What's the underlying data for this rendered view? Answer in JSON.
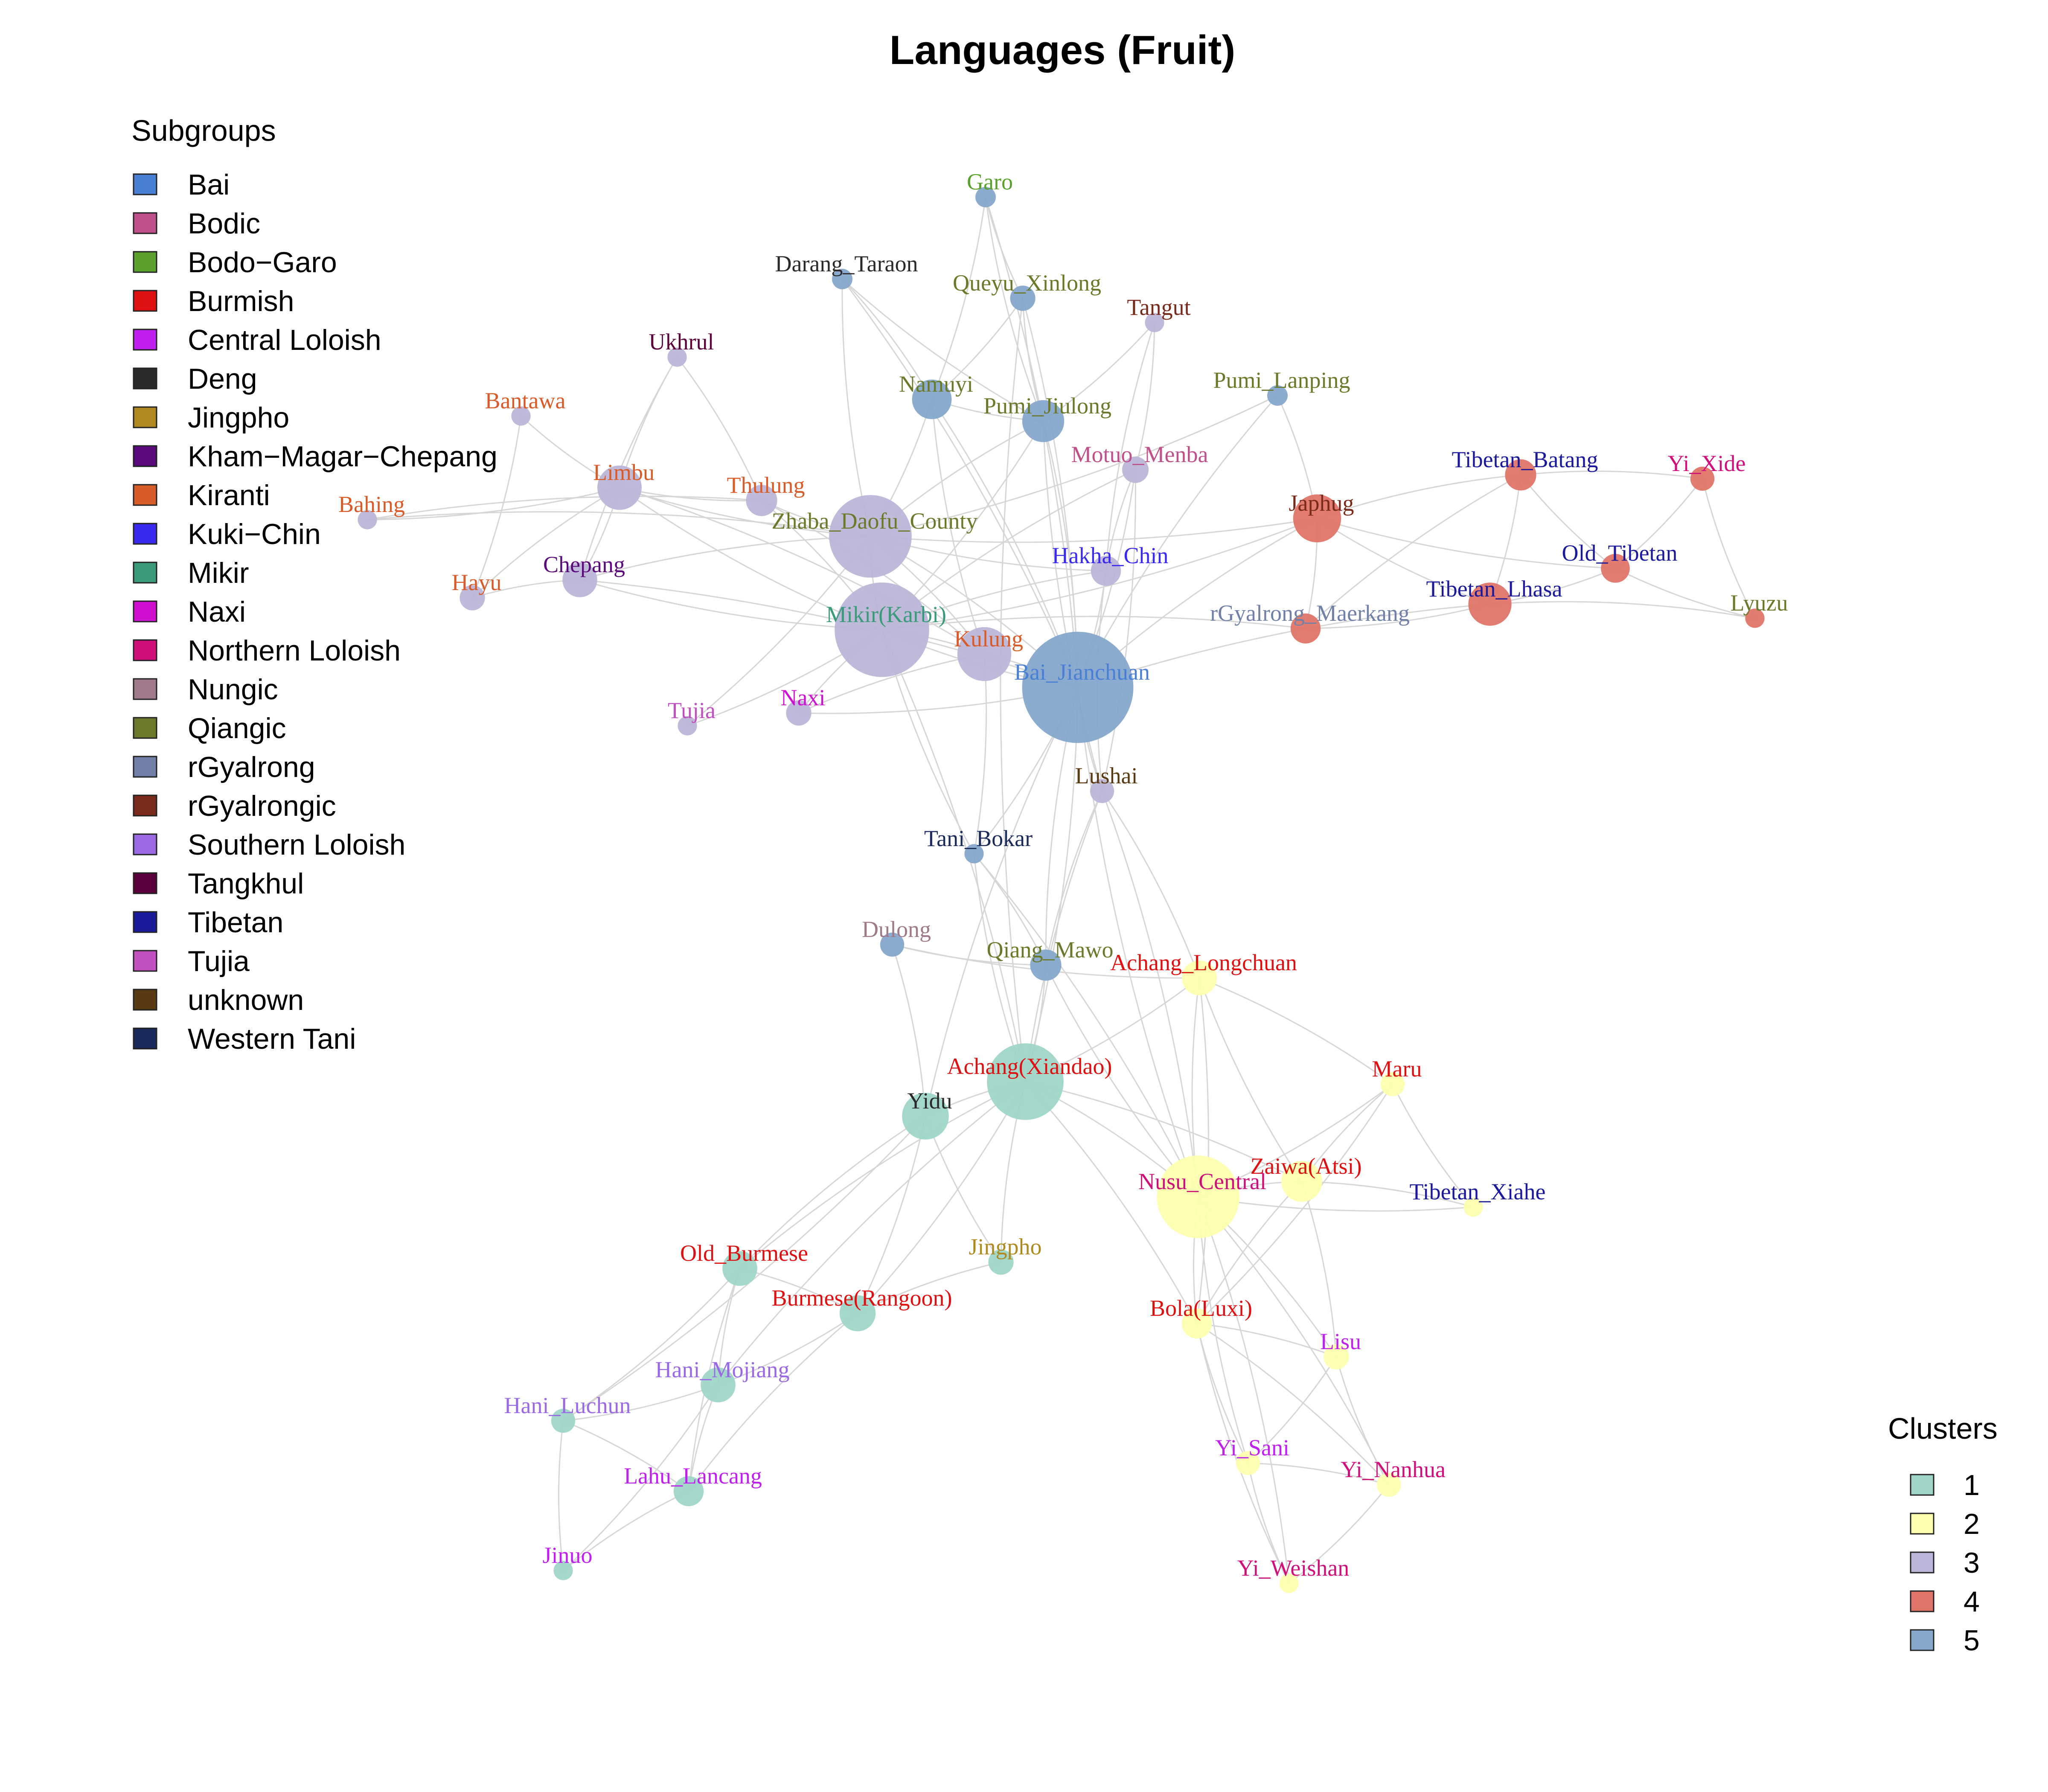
{
  "title": "Languages (Fruit)",
  "legends": {
    "subgroups": {
      "title": "Subgroups",
      "items": [
        {
          "label": "Bai",
          "color": "#4a7fd6"
        },
        {
          "label": "Bodic",
          "color": "#c0508a"
        },
        {
          "label": "Bodo−Garo",
          "color": "#5aa02c"
        },
        {
          "label": "Burmish",
          "color": "#dd1111"
        },
        {
          "label": "Central Loloish",
          "color": "#c020ee"
        },
        {
          "label": "Deng",
          "color": "#2a2a2a"
        },
        {
          "label": "Jingpho",
          "color": "#b08a20"
        },
        {
          "label": "Kham−Magar−Chepang",
          "color": "#5a0a7a"
        },
        {
          "label": "Kiranti",
          "color": "#d85c2a"
        },
        {
          "label": "Kuki−Chin",
          "color": "#3a2aee"
        },
        {
          "label": "Mikir",
          "color": "#3a9a7a"
        },
        {
          "label": "Naxi",
          "color": "#d010d0"
        },
        {
          "label": "Northern Loloish",
          "color": "#d0107a"
        },
        {
          "label": "Nungic",
          "color": "#a07a8a"
        },
        {
          "label": "Qiangic",
          "color": "#6a7a2a"
        },
        {
          "label": "rGyalrong",
          "color": "#7080a8"
        },
        {
          "label": "rGyalrongic",
          "color": "#7a2a1a"
        },
        {
          "label": "Southern Loloish",
          "color": "#9a6ae6"
        },
        {
          "label": "Tangkhul",
          "color": "#5a003a"
        },
        {
          "label": "Tibetan",
          "color": "#1a1a9a"
        },
        {
          "label": "Tujia",
          "color": "#c050c0"
        },
        {
          "label": "unknown",
          "color": "#5a3a10"
        },
        {
          "label": "Western Tani",
          "color": "#1a2a5a"
        }
      ]
    },
    "clusters": {
      "title": "Clusters",
      "items": [
        {
          "label": "1",
          "color": "#9fd6c8"
        },
        {
          "label": "2",
          "color": "#ffffb0"
        },
        {
          "label": "3",
          "color": "#bcb6d8"
        },
        {
          "label": "4",
          "color": "#e07468"
        },
        {
          "label": "5",
          "color": "#86a8cc"
        }
      ]
    }
  },
  "nodes": [
    {
      "id": "Garo",
      "label": "Garo",
      "subgroup": "Bodo−Garo",
      "cluster": "5",
      "size": 1
    },
    {
      "id": "Darang_Taraon",
      "label": "Darang_Taraon",
      "subgroup": "Deng",
      "cluster": "5",
      "size": 1
    },
    {
      "id": "Queyu_Xinlong",
      "label": "Queyu_Xinlong",
      "subgroup": "Qiangic",
      "cluster": "5",
      "size": 1.4
    },
    {
      "id": "Tangut",
      "label": "Tangut",
      "subgroup": "rGyalrongic",
      "cluster": "3",
      "size": 0.9
    },
    {
      "id": "Ukhrul",
      "label": "Ukhrul",
      "subgroup": "Tangkhul",
      "cluster": "3",
      "size": 0.9
    },
    {
      "id": "Namuyi",
      "label": "Namuyi",
      "subgroup": "Qiangic",
      "cluster": "5",
      "size": 2.6
    },
    {
      "id": "Pumi_Jiulong",
      "label": "Pumi_Jiulong",
      "subgroup": "Qiangic",
      "cluster": "5",
      "size": 2.8
    },
    {
      "id": "Pumi_Lanping",
      "label": "Pumi_Lanping",
      "subgroup": "Qiangic",
      "cluster": "5",
      "size": 1
    },
    {
      "id": "Bantawa",
      "label": "Bantawa",
      "subgroup": "Kiranti",
      "cluster": "3",
      "size": 0.9
    },
    {
      "id": "Motuo_Menba",
      "label": "Motuo_Menba",
      "subgroup": "Bodic",
      "cluster": "3",
      "size": 1.5
    },
    {
      "id": "Limbu",
      "label": "Limbu",
      "subgroup": "Kiranti",
      "cluster": "3",
      "size": 3
    },
    {
      "id": "Thulung",
      "label": "Thulung",
      "subgroup": "Kiranti",
      "cluster": "3",
      "size": 1.9
    },
    {
      "id": "Bahing",
      "label": "Bahing",
      "subgroup": "Kiranti",
      "cluster": "3",
      "size": 0.9
    },
    {
      "id": "Zhaba_Daofu_County",
      "label": "Zhaba_Daofu_County",
      "subgroup": "Qiangic",
      "cluster": "3",
      "size": 6.2
    },
    {
      "id": "Japhug",
      "label": "Japhug",
      "subgroup": "rGyalrongic",
      "cluster": "4",
      "size": 3.3
    },
    {
      "id": "Tibetan_Batang",
      "label": "Tibetan_Batang",
      "subgroup": "Tibetan",
      "cluster": "4",
      "size": 1.9
    },
    {
      "id": "Yi_Xide",
      "label": "Yi_Xide",
      "subgroup": "Northern Loloish",
      "cluster": "4",
      "size": 1.3
    },
    {
      "id": "Old_Tibetan",
      "label": "Old_Tibetan",
      "subgroup": "Tibetan",
      "cluster": "4",
      "size": 1.7
    },
    {
      "id": "Hayu",
      "label": "Hayu",
      "subgroup": "Kiranti",
      "cluster": "3",
      "size": 1.4
    },
    {
      "id": "Chepang",
      "label": "Chepang",
      "subgroup": "Kham−Magar−Chepang",
      "cluster": "3",
      "size": 2.2
    },
    {
      "id": "Hakha_Chin",
      "label": "Hakha_Chin",
      "subgroup": "Kuki−Chin",
      "cluster": "3",
      "size": 1.8
    },
    {
      "id": "Tibetan_Lhasa",
      "label": "Tibetan_Lhasa",
      "subgroup": "Tibetan",
      "cluster": "4",
      "size": 2.9
    },
    {
      "id": "Lyuzu",
      "label": "Lyuzu",
      "subgroup": "Qiangic",
      "cluster": "4",
      "size": 0.9
    },
    {
      "id": "rGyalrong_Maerkang",
      "label": "rGyalrong_Maerkang",
      "subgroup": "rGyalrong",
      "cluster": "4",
      "size": 1.8
    },
    {
      "id": "Mikir(Karbi)",
      "label": "Mikir(Karbi)",
      "subgroup": "Mikir",
      "cluster": "3",
      "size": 7.2
    },
    {
      "id": "Kulung",
      "label": "Kulung",
      "subgroup": "Kiranti",
      "cluster": "3",
      "size": 3.8
    },
    {
      "id": "Bai_Jianchuan",
      "label": "Bai_Jianchuan",
      "subgroup": "Bai",
      "cluster": "5",
      "size": 8.6
    },
    {
      "id": "Tujia",
      "label": "Tujia",
      "subgroup": "Tujia",
      "cluster": "3",
      "size": 0.9
    },
    {
      "id": "Naxi",
      "label": "Naxi",
      "subgroup": "Naxi",
      "cluster": "3",
      "size": 1.4
    },
    {
      "id": "Lushai",
      "label": "Lushai",
      "subgroup": "unknown",
      "cluster": "3",
      "size": 1.3
    },
    {
      "id": "Tani_Bokar",
      "label": "Tani_Bokar",
      "subgroup": "Western Tani",
      "cluster": "5",
      "size": 0.9
    },
    {
      "id": "Dulong",
      "label": "Dulong",
      "subgroup": "Nungic",
      "cluster": "5",
      "size": 1.3
    },
    {
      "id": "Qiang_Mawo",
      "label": "Qiang_Mawo",
      "subgroup": "Qiangic",
      "cluster": "5",
      "size": 1.9
    },
    {
      "id": "Achang_Longchuan",
      "label": "Achang_Longchuan",
      "subgroup": "Burmish",
      "cluster": "2",
      "size": 2.2
    },
    {
      "id": "Achang(Xiandao)",
      "label": "Achang(Xiandao)",
      "subgroup": "Burmish",
      "cluster": "1",
      "size": 5.7
    },
    {
      "id": "Maru",
      "label": "Maru",
      "subgroup": "Burmish",
      "cluster": "2",
      "size": 1.3
    },
    {
      "id": "Yidu",
      "label": "Yidu",
      "subgroup": "Deng",
      "cluster": "1",
      "size": 3.2
    },
    {
      "id": "Zaiwa(Atsi)",
      "label": "Zaiwa(Atsi)",
      "subgroup": "Burmish",
      "cluster": "2",
      "size": 2.7
    },
    {
      "id": "Nusu_Central",
      "label": "Nusu_Central",
      "subgroup": "Northern Loloish",
      "cluster": "2",
      "size": 6.2
    },
    {
      "id": "Tibetan_Xiahe",
      "label": "Tibetan_Xiahe",
      "subgroup": "Tibetan",
      "cluster": "2",
      "size": 0.9
    },
    {
      "id": "Jingpho",
      "label": "Jingpho",
      "subgroup": "Jingpho",
      "cluster": "1",
      "size": 1.4
    },
    {
      "id": "Old_Burmese",
      "label": "Old_Burmese",
      "subgroup": "Burmish",
      "cluster": "1",
      "size": 2.2
    },
    {
      "id": "Burmese(Rangoon)",
      "label": "Burmese(Rangoon)",
      "subgroup": "Burmish",
      "cluster": "1",
      "size": 2.3
    },
    {
      "id": "Bola(Luxi)",
      "label": "Bola(Luxi)",
      "subgroup": "Burmish",
      "cluster": "2",
      "size": 1.8
    },
    {
      "id": "Lisu",
      "label": "Lisu",
      "subgroup": "Central Loloish",
      "cluster": "2",
      "size": 1.4
    },
    {
      "id": "Hani_Mojiang",
      "label": "Hani_Mojiang",
      "subgroup": "Southern Loloish",
      "cluster": "1",
      "size": 2.2
    },
    {
      "id": "Hani_Luchun",
      "label": "Hani_Luchun",
      "subgroup": "Southern Loloish",
      "cluster": "1",
      "size": 1.3
    },
    {
      "id": "Yi_Sani",
      "label": "Yi_Sani",
      "subgroup": "Central Loloish",
      "cluster": "2",
      "size": 1.3
    },
    {
      "id": "Yi_Nanhua",
      "label": "Yi_Nanhua",
      "subgroup": "Northern Loloish",
      "cluster": "2",
      "size": 1.3
    },
    {
      "id": "Lahu_Lancang",
      "label": "Lahu_Lancang",
      "subgroup": "Central Loloish",
      "cluster": "1",
      "size": 1.8
    },
    {
      "id": "Jinuo",
      "label": "Jinuo",
      "subgroup": "Central Loloish",
      "cluster": "1",
      "size": 0.9
    },
    {
      "id": "Yi_Weishan",
      "label": "Yi_Weishan",
      "subgroup": "Northern Loloish",
      "cluster": "2",
      "size": 0.9
    }
  ],
  "edges": [
    [
      "Garo",
      "Namuyi"
    ],
    [
      "Garo",
      "Pumi_Jiulong"
    ],
    [
      "Garo",
      "Bai_Jianchuan"
    ],
    [
      "Garo",
      "Queyu_Xinlong"
    ],
    [
      "Darang_Taraon",
      "Namuyi"
    ],
    [
      "Darang_Taraon",
      "Zhaba_Daofu_County"
    ],
    [
      "Darang_Taraon",
      "Bai_Jianchuan"
    ],
    [
      "Darang_Taraon",
      "Pumi_Jiulong"
    ],
    [
      "Queyu_Xinlong",
      "Namuyi"
    ],
    [
      "Queyu_Xinlong",
      "Pumi_Jiulong"
    ],
    [
      "Queyu_Xinlong",
      "Bai_Jianchuan"
    ],
    [
      "Queyu_Xinlong",
      "Achang(Xiandao)"
    ],
    [
      "Tangut",
      "Pumi_Jiulong"
    ],
    [
      "Tangut",
      "Hakha_Chin"
    ],
    [
      "Tangut",
      "Motuo_Menba"
    ],
    [
      "Ukhrul",
      "Limbu"
    ],
    [
      "Ukhrul",
      "Thulung"
    ],
    [
      "Ukhrul",
      "Chepang"
    ],
    [
      "Namuyi",
      "Zhaba_Daofu_County"
    ],
    [
      "Namuyi",
      "Kulung"
    ],
    [
      "Namuyi",
      "Bai_Jianchuan"
    ],
    [
      "Namuyi",
      "Pumi_Jiulong"
    ],
    [
      "Pumi_Jiulong",
      "Bai_Jianchuan"
    ],
    [
      "Pumi_Jiulong",
      "Zhaba_Daofu_County"
    ],
    [
      "Pumi_Jiulong",
      "Mikir(Karbi)"
    ],
    [
      "Pumi_Jiulong",
      "Lushai"
    ],
    [
      "Pumi_Lanping",
      "Japhug"
    ],
    [
      "Pumi_Lanping",
      "Bai_Jianchuan"
    ],
    [
      "Pumi_Lanping",
      "Zhaba_Daofu_County"
    ],
    [
      "Bantawa",
      "Limbu"
    ],
    [
      "Bantawa",
      "Hayu"
    ],
    [
      "Motuo_Menba",
      "Mikir(Karbi)"
    ],
    [
      "Motuo_Menba",
      "Bai_Jianchuan"
    ],
    [
      "Motuo_Menba",
      "Hakha_Chin"
    ],
    [
      "Motuo_Menba",
      "Lushai"
    ],
    [
      "Limbu",
      "Thulung"
    ],
    [
      "Limbu",
      "Chepang"
    ],
    [
      "Limbu",
      "Mikir(Karbi)"
    ],
    [
      "Limbu",
      "Bahing"
    ],
    [
      "Limbu",
      "Zhaba_Daofu_County"
    ],
    [
      "Limbu",
      "Kulung"
    ],
    [
      "Limbu",
      "Hayu"
    ],
    [
      "Thulung",
      "Mikir(Karbi)"
    ],
    [
      "Thulung",
      "Zhaba_Daofu_County"
    ],
    [
      "Thulung",
      "Kulung"
    ],
    [
      "Thulung",
      "Bahing"
    ],
    [
      "Bahing",
      "Zhaba_Daofu_County"
    ],
    [
      "Zhaba_Daofu_County",
      "Mikir(Karbi)"
    ],
    [
      "Zhaba_Daofu_County",
      "Kulung"
    ],
    [
      "Zhaba_Daofu_County",
      "Chepang"
    ],
    [
      "Zhaba_Daofu_County",
      "Bai_Jianchuan"
    ],
    [
      "Zhaba_Daofu_County",
      "Japhug"
    ],
    [
      "Zhaba_Daofu_County",
      "Tujia"
    ],
    [
      "Zhaba_Daofu_County",
      "Hakha_Chin"
    ],
    [
      "Japhug",
      "Tibetan_Batang"
    ],
    [
      "Japhug",
      "Old_Tibetan"
    ],
    [
      "Japhug",
      "rGyalrong_Maerkang"
    ],
    [
      "Japhug",
      "Tibetan_Lhasa"
    ],
    [
      "Japhug",
      "Mikir(Karbi)"
    ],
    [
      "Japhug",
      "Bai_Jianchuan"
    ],
    [
      "Tibetan_Batang",
      "Yi_Xide"
    ],
    [
      "Tibetan_Batang",
      "Old_Tibetan"
    ],
    [
      "Tibetan_Batang",
      "Tibetan_Lhasa"
    ],
    [
      "Tibetan_Batang",
      "rGyalrong_Maerkang"
    ],
    [
      "Yi_Xide",
      "Old_Tibetan"
    ],
    [
      "Yi_Xide",
      "Lyuzu"
    ],
    [
      "Old_Tibetan",
      "Tibetan_Lhasa"
    ],
    [
      "Old_Tibetan",
      "Lyuzu"
    ],
    [
      "Hayu",
      "Chepang"
    ],
    [
      "Chepang",
      "Mikir(Karbi)"
    ],
    [
      "Chepang",
      "Bai_Jianchuan"
    ],
    [
      "Hakha_Chin",
      "Mikir(Karbi)"
    ],
    [
      "Hakha_Chin",
      "Bai_Jianchuan"
    ],
    [
      "Hakha_Chin",
      "Lushai"
    ],
    [
      "Tibetan_Lhasa",
      "Lyuzu"
    ],
    [
      "Tibetan_Lhasa",
      "Bai_Jianchuan"
    ],
    [
      "Tibetan_Lhasa",
      "rGyalrong_Maerkang"
    ],
    [
      "rGyalrong_Maerkang",
      "Mikir(Karbi)"
    ],
    [
      "Mikir(Karbi)",
      "Kulung"
    ],
    [
      "Mikir(Karbi)",
      "Bai_Jianchuan"
    ],
    [
      "Mikir(Karbi)",
      "Tujia"
    ],
    [
      "Mikir(Karbi)",
      "Naxi"
    ],
    [
      "Mikir(Karbi)",
      "Achang(Xiandao)"
    ],
    [
      "Mikir(Karbi)",
      "Tani_Bokar"
    ],
    [
      "Kulung",
      "Bai_Jianchuan"
    ],
    [
      "Kulung",
      "Naxi"
    ],
    [
      "Kulung",
      "Tani_Bokar"
    ],
    [
      "Bai_Jianchuan",
      "Lushai"
    ],
    [
      "Bai_Jianchuan",
      "Tani_Bokar"
    ],
    [
      "Bai_Jianchuan",
      "Qiang_Mawo"
    ],
    [
      "Bai_Jianchuan",
      "Achang(Xiandao)"
    ],
    [
      "Bai_Jianchuan",
      "Yidu"
    ],
    [
      "Bai_Jianchuan",
      "Naxi"
    ],
    [
      "Bai_Jianchuan",
      "Nusu_Central"
    ],
    [
      "Lushai",
      "Achang_Longchuan"
    ],
    [
      "Lushai",
      "Qiang_Mawo"
    ],
    [
      "Lushai",
      "Nusu_Central"
    ],
    [
      "Lushai",
      "Achang(Xiandao)"
    ],
    [
      "Tani_Bokar",
      "Qiang_Mawo"
    ],
    [
      "Tani_Bokar",
      "Achang(Xiandao)"
    ],
    [
      "Tani_Bokar",
      "Nusu_Central"
    ],
    [
      "Dulong",
      "Qiang_Mawo"
    ],
    [
      "Dulong",
      "Yidu"
    ],
    [
      "Dulong",
      "Achang_Longchuan"
    ],
    [
      "Qiang_Mawo",
      "Achang(Xiandao)"
    ],
    [
      "Qiang_Mawo",
      "Nusu_Central"
    ],
    [
      "Achang_Longchuan",
      "Achang(Xiandao)"
    ],
    [
      "Achang_Longchuan",
      "Nusu_Central"
    ],
    [
      "Achang_Longchuan",
      "Maru"
    ],
    [
      "Achang_Longchuan",
      "Zaiwa(Atsi)"
    ],
    [
      "Achang_Longchuan",
      "Bola(Luxi)"
    ],
    [
      "Achang(Xiandao)",
      "Yidu"
    ],
    [
      "Achang(Xiandao)",
      "Nusu_Central"
    ],
    [
      "Achang(Xiandao)",
      "Old_Burmese"
    ],
    [
      "Achang(Xiandao)",
      "Burmese(Rangoon)"
    ],
    [
      "Achang(Xiandao)",
      "Jingpho"
    ],
    [
      "Achang(Xiandao)",
      "Zaiwa(Atsi)"
    ],
    [
      "Achang(Xiandao)",
      "Hani_Mojiang"
    ],
    [
      "Achang(Xiandao)",
      "Bola(Luxi)"
    ],
    [
      "Maru",
      "Zaiwa(Atsi)"
    ],
    [
      "Maru",
      "Nusu_Central"
    ],
    [
      "Maru",
      "Tibetan_Xiahe"
    ],
    [
      "Maru",
      "Bola(Luxi)"
    ],
    [
      "Yidu",
      "Old_Burmese"
    ],
    [
      "Yidu",
      "Burmese(Rangoon)"
    ],
    [
      "Yidu",
      "Jingpho"
    ],
    [
      "Yidu",
      "Hani_Luchun"
    ],
    [
      "Zaiwa(Atsi)",
      "Nusu_Central"
    ],
    [
      "Zaiwa(Atsi)",
      "Tibetan_Xiahe"
    ],
    [
      "Zaiwa(Atsi)",
      "Bola(Luxi)"
    ],
    [
      "Zaiwa(Atsi)",
      "Lisu"
    ],
    [
      "Nusu_Central",
      "Bola(Luxi)"
    ],
    [
      "Nusu_Central",
      "Lisu"
    ],
    [
      "Nusu_Central",
      "Yi_Sani"
    ],
    [
      "Nusu_Central",
      "Yi_Nanhua"
    ],
    [
      "Nusu_Central",
      "Tibetan_Xiahe"
    ],
    [
      "Nusu_Central",
      "Yi_Weishan"
    ],
    [
      "Jingpho",
      "Burmese(Rangoon)"
    ],
    [
      "Old_Burmese",
      "Burmese(Rangoon)"
    ],
    [
      "Old_Burmese",
      "Hani_Mojiang"
    ],
    [
      "Old_Burmese",
      "Hani_Luchun"
    ],
    [
      "Old_Burmese",
      "Lahu_Lancang"
    ],
    [
      "Burmese(Rangoon)",
      "Hani_Mojiang"
    ],
    [
      "Burmese(Rangoon)",
      "Lahu_Lancang"
    ],
    [
      "Bola(Luxi)",
      "Lisu"
    ],
    [
      "Bola(Luxi)",
      "Yi_Sani"
    ],
    [
      "Bola(Luxi)",
      "Yi_Nanhua"
    ],
    [
      "Bola(Luxi)",
      "Yi_Weishan"
    ],
    [
      "Lisu",
      "Yi_Sani"
    ],
    [
      "Lisu",
      "Yi_Nanhua"
    ],
    [
      "Hani_Mojiang",
      "Hani_Luchun"
    ],
    [
      "Hani_Mojiang",
      "Lahu_Lancang"
    ],
    [
      "Hani_Mojiang",
      "Jinuo"
    ],
    [
      "Hani_Luchun",
      "Jinuo"
    ],
    [
      "Hani_Luchun",
      "Lahu_Lancang"
    ],
    [
      "Lahu_Lancang",
      "Jinuo"
    ],
    [
      "Yi_Sani",
      "Yi_Nanhua"
    ],
    [
      "Yi_Sani",
      "Yi_Weishan"
    ],
    [
      "Yi_Nanhua",
      "Yi_Weishan"
    ]
  ]
}
